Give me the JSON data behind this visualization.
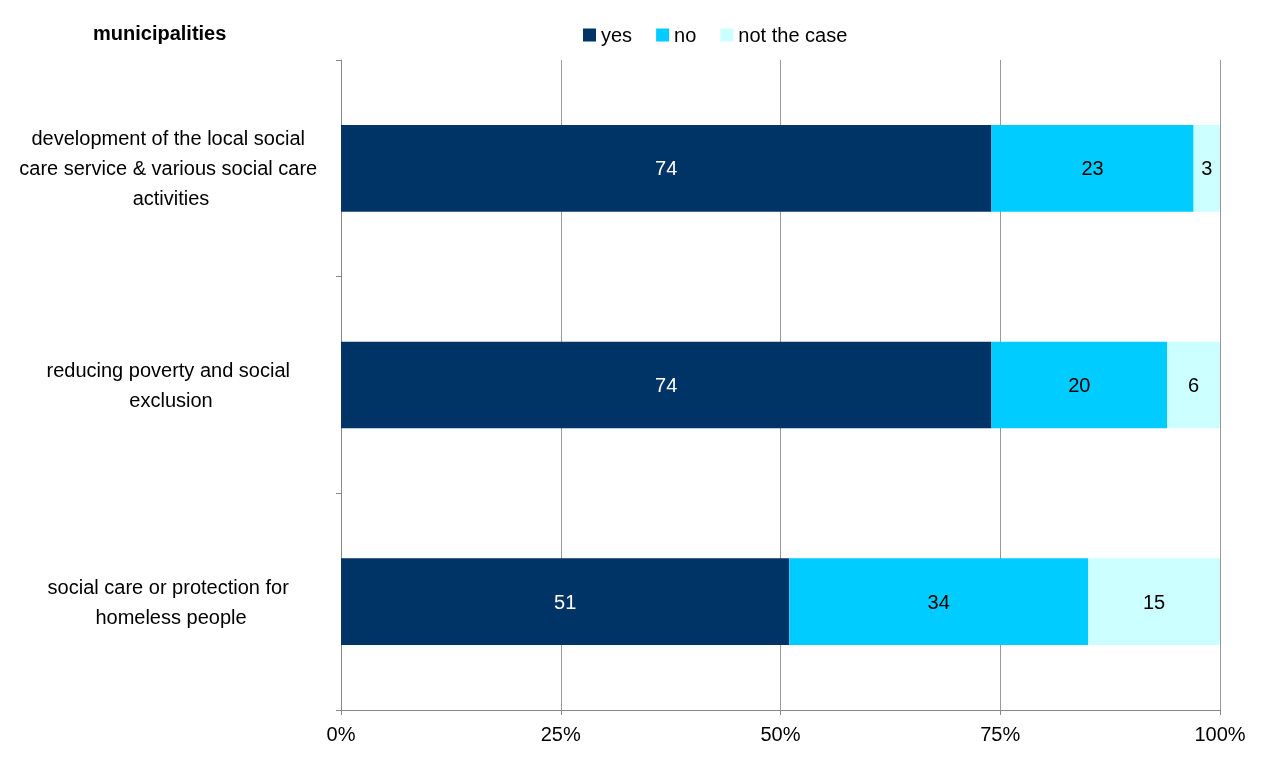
{
  "chart_data": {
    "type": "bar",
    "orientation": "horizontal",
    "stacked": true,
    "title": "municipalities",
    "categories": [
      "development of the local social care service & various social care activities",
      "reducing poverty and social exclusion",
      "social care or protection for homeless people"
    ],
    "series": [
      {
        "name": "yes",
        "color": "#003366",
        "values": [
          74,
          74,
          51
        ]
      },
      {
        "name": "no",
        "color": "#00ccff",
        "values": [
          23,
          20,
          34
        ]
      },
      {
        "name": "not the case",
        "color": "#ccffff",
        "values": [
          3,
          6,
          15
        ]
      }
    ],
    "xlim": [
      0,
      100
    ],
    "xticks": [
      {
        "value": 0,
        "label": "0%"
      },
      {
        "value": 25,
        "label": "25%"
      },
      {
        "value": 50,
        "label": "50%"
      },
      {
        "value": 75,
        "label": "75%"
      },
      {
        "value": 100,
        "label": "100%"
      }
    ],
    "grid": "x",
    "legend": "top",
    "data_labels": true
  }
}
